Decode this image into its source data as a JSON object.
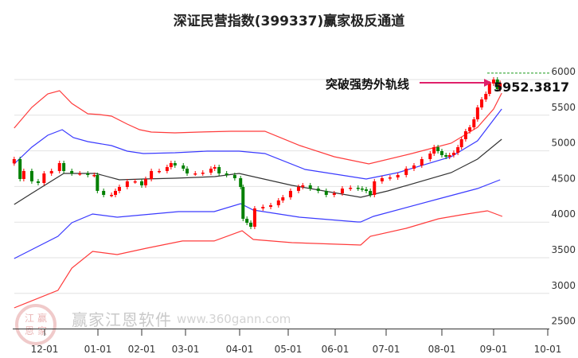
{
  "title": "深证民营指数(399337)赢家极反通道",
  "annotation": {
    "text": "突破强势外轨线",
    "value": "5952.3817",
    "arrow_color": "#e0206a"
  },
  "watermark": {
    "brand": "赢家江恩软件",
    "url": "www.360gann.com",
    "seal": "江赢恩家"
  },
  "chart_data": {
    "type": "candlestick",
    "title": "深证民营指数(399337)赢家极反通道",
    "x_ticks": [
      "12-01",
      "01-01",
      "02-01",
      "03-01",
      "04-01",
      "05-01",
      "06-01",
      "07-01",
      "08-01",
      "09-01",
      "10-01"
    ],
    "x_units": "months since 12-01",
    "y_ticks": [
      2500,
      3000,
      3500,
      4000,
      4500,
      5000,
      5500,
      6000
    ],
    "ylim": [
      2500,
      6000
    ],
    "grid": true,
    "last_close": 5952.3817,
    "high_line": 6090,
    "colors": {
      "up": "#ff0000",
      "down": "#008000",
      "outer": "#ff3b3b",
      "inner": "#3a3aff",
      "mid": "#333333",
      "high_line": "#1a9a1a"
    },
    "closes": [
      [
        -0.57,
        4884
      ],
      [
        -0.46,
        4605
      ],
      [
        -0.39,
        4717
      ],
      [
        -0.24,
        4572
      ],
      [
        -0.12,
        4549
      ],
      [
        -0.01,
        4683
      ],
      [
        0.13,
        4717
      ],
      [
        0.28,
        4828
      ],
      [
        0.36,
        4717
      ],
      [
        0.51,
        4683
      ],
      [
        0.66,
        4683
      ],
      [
        0.81,
        4661
      ],
      [
        0.93,
        4661
      ],
      [
        0.99,
        4438
      ],
      [
        1.13,
        4382
      ],
      [
        1.31,
        4382
      ],
      [
        1.4,
        4438
      ],
      [
        1.49,
        4493
      ],
      [
        1.67,
        4572
      ],
      [
        1.85,
        4572
      ],
      [
        2.0,
        4516
      ],
      [
        2.09,
        4605
      ],
      [
        2.22,
        4717
      ],
      [
        2.4,
        4717
      ],
      [
        2.58,
        4772
      ],
      [
        2.67,
        4828
      ],
      [
        2.76,
        4795
      ],
      [
        2.95,
        4750
      ],
      [
        3.03,
        4683
      ],
      [
        3.18,
        4683
      ],
      [
        3.32,
        4694
      ],
      [
        3.47,
        4750
      ],
      [
        3.54,
        4772
      ],
      [
        3.62,
        4683
      ],
      [
        3.76,
        4661
      ],
      [
        3.91,
        4616
      ],
      [
        4.02,
        4493
      ],
      [
        4.07,
        4047
      ],
      [
        4.15,
        3991
      ],
      [
        4.23,
        3935
      ],
      [
        4.31,
        4192
      ],
      [
        4.48,
        4214
      ],
      [
        4.64,
        4237
      ],
      [
        4.8,
        4304
      ],
      [
        4.89,
        4348
      ],
      [
        5.05,
        4438
      ],
      [
        5.22,
        4493
      ],
      [
        5.31,
        4516
      ],
      [
        5.47,
        4471
      ],
      [
        5.64,
        4438
      ],
      [
        5.81,
        4382
      ],
      [
        5.98,
        4404
      ],
      [
        6.14,
        4471
      ],
      [
        6.3,
        4482
      ],
      [
        6.45,
        4471
      ],
      [
        6.53,
        4460
      ],
      [
        6.61,
        4438
      ],
      [
        6.69,
        4382
      ],
      [
        6.77,
        4572
      ],
      [
        6.92,
        4616
      ],
      [
        7.07,
        4627
      ],
      [
        7.21,
        4661
      ],
      [
        7.36,
        4750
      ],
      [
        7.5,
        4795
      ],
      [
        7.64,
        4884
      ],
      [
        7.79,
        4962
      ],
      [
        7.86,
        5051
      ],
      [
        7.93,
        4996
      ],
      [
        8.0,
        4940
      ],
      [
        8.08,
        4917
      ],
      [
        8.15,
        4940
      ],
      [
        8.23,
        4973
      ],
      [
        8.31,
        5051
      ],
      [
        8.38,
        5163
      ],
      [
        8.46,
        5275
      ],
      [
        8.54,
        5330
      ],
      [
        8.62,
        5442
      ],
      [
        8.69,
        5609
      ],
      [
        8.77,
        5721
      ],
      [
        8.85,
        5799
      ],
      [
        8.92,
        5944
      ],
      [
        9.0,
        6000
      ],
      [
        9.07,
        5866
      ],
      [
        9.12,
        5952
      ]
    ],
    "series": [
      {
        "name": "outer-upper",
        "color": "#ff3b3b",
        "points": [
          [
            -0.57,
            5319
          ],
          [
            -0.24,
            5609
          ],
          [
            0.06,
            5799
          ],
          [
            0.28,
            5844
          ],
          [
            0.51,
            5665
          ],
          [
            0.81,
            5520
          ],
          [
            1.04,
            5509
          ],
          [
            1.31,
            5487
          ],
          [
            1.67,
            5375
          ],
          [
            1.95,
            5297
          ],
          [
            2.22,
            5263
          ],
          [
            2.76,
            5252
          ],
          [
            3.25,
            5263
          ],
          [
            3.84,
            5275
          ],
          [
            4.52,
            5275
          ],
          [
            5.25,
            5074
          ],
          [
            5.98,
            4917
          ],
          [
            6.66,
            4817
          ],
          [
            7.46,
            4962
          ],
          [
            8.18,
            5107
          ],
          [
            8.69,
            5330
          ],
          [
            9.0,
            5587
          ],
          [
            9.15,
            5810
          ]
        ]
      },
      {
        "name": "inner-upper",
        "color": "#3a3aff",
        "points": [
          [
            -0.57,
            4817
          ],
          [
            -0.24,
            5051
          ],
          [
            0.06,
            5219
          ],
          [
            0.33,
            5297
          ],
          [
            0.54,
            5185
          ],
          [
            0.81,
            5130
          ],
          [
            1.31,
            5074
          ],
          [
            1.67,
            4996
          ],
          [
            2.04,
            4962
          ],
          [
            2.76,
            4973
          ],
          [
            3.4,
            4996
          ],
          [
            3.99,
            4996
          ],
          [
            4.52,
            4962
          ],
          [
            5.36,
            4739
          ],
          [
            6.61,
            4605
          ],
          [
            7.21,
            4694
          ],
          [
            8.18,
            4917
          ],
          [
            8.69,
            5141
          ],
          [
            9.15,
            5587
          ]
        ]
      },
      {
        "name": "middle",
        "color": "#333333",
        "points": [
          [
            -0.57,
            4248
          ],
          [
            -0.24,
            4404
          ],
          [
            0.36,
            4683
          ],
          [
            0.96,
            4683
          ],
          [
            1.49,
            4594
          ],
          [
            2.04,
            4605
          ],
          [
            2.76,
            4616
          ],
          [
            3.54,
            4638
          ],
          [
            3.99,
            4683
          ],
          [
            5.08,
            4516
          ],
          [
            6.5,
            4348
          ],
          [
            7.03,
            4438
          ],
          [
            8.18,
            4694
          ],
          [
            8.69,
            4884
          ],
          [
            9.15,
            5163
          ]
        ]
      },
      {
        "name": "inner-lower",
        "color": "#3a3aff",
        "points": [
          [
            -0.57,
            3489
          ],
          [
            0.25,
            3801
          ],
          [
            0.51,
            3991
          ],
          [
            0.9,
            4114
          ],
          [
            1.44,
            4069
          ],
          [
            2.84,
            4147
          ],
          [
            3.53,
            4147
          ],
          [
            4.02,
            4259
          ],
          [
            4.28,
            4170
          ],
          [
            5.24,
            4069
          ],
          [
            6.44,
            4002
          ],
          [
            6.5,
            4002
          ],
          [
            6.75,
            4080
          ],
          [
            7.94,
            4326
          ],
          [
            8.69,
            4471
          ],
          [
            9.12,
            4594
          ]
        ]
      },
      {
        "name": "outer-lower",
        "color": "#ff3b3b",
        "points": [
          [
            -0.57,
            2797
          ],
          [
            0.25,
            3043
          ],
          [
            0.51,
            3355
          ],
          [
            0.9,
            3589
          ],
          [
            1.44,
            3545
          ],
          [
            2.11,
            3634
          ],
          [
            2.93,
            3735
          ],
          [
            3.53,
            3735
          ],
          [
            4.05,
            3880
          ],
          [
            4.28,
            3757
          ],
          [
            5.08,
            3712
          ],
          [
            6.5,
            3679
          ],
          [
            6.69,
            3801
          ],
          [
            7.36,
            3913
          ],
          [
            7.94,
            4047
          ],
          [
            8.38,
            4103
          ],
          [
            8.88,
            4159
          ],
          [
            9.16,
            4080
          ]
        ]
      }
    ]
  }
}
